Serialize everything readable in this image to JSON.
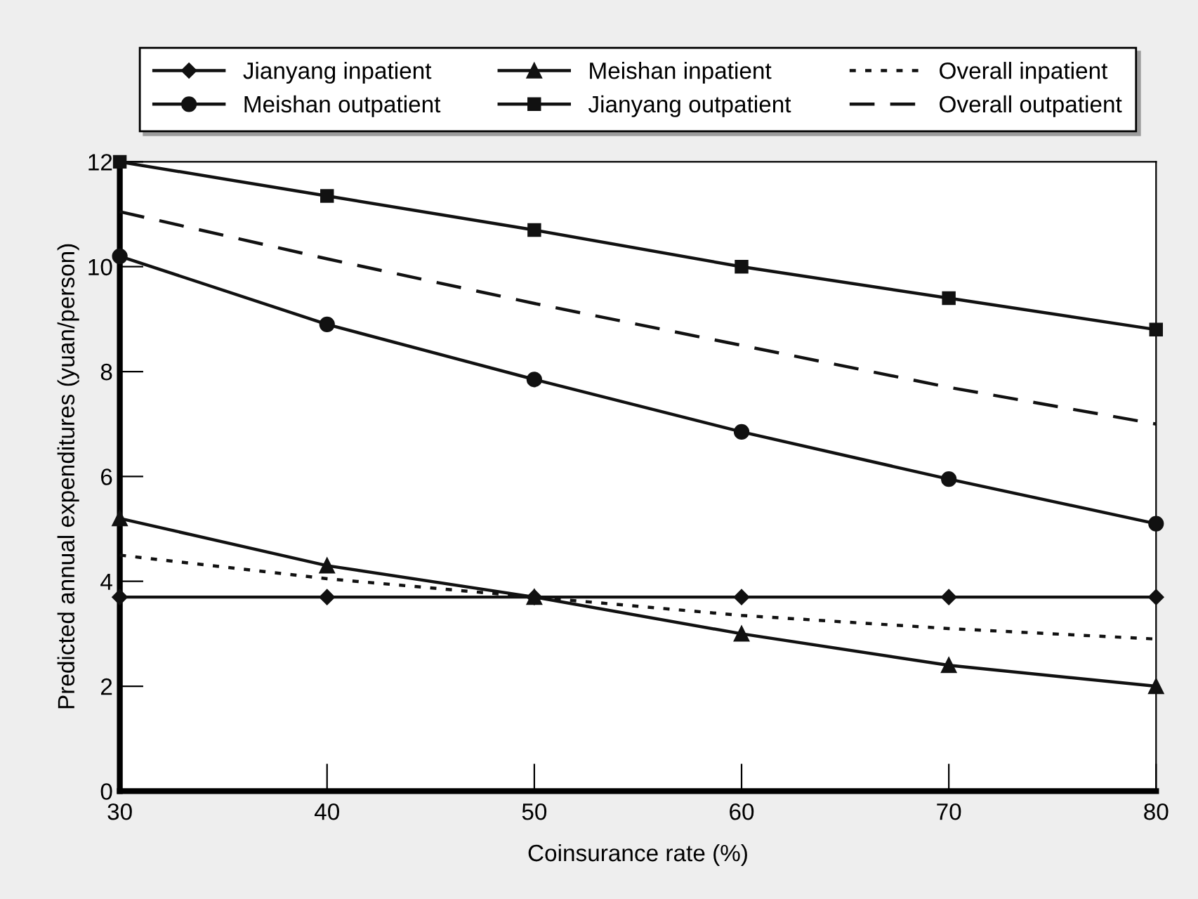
{
  "chart_data": {
    "type": "line",
    "xlabel": "Coinsurance rate (%)",
    "ylabel": "Predicted annual expenditures (yuan/person)",
    "x": [
      30,
      40,
      50,
      60,
      70,
      80
    ],
    "series": [
      {
        "name": "Jianyang inpatient",
        "color": "#111111",
        "marker": "diamond",
        "line_style": "solid",
        "values": [
          3.7,
          3.7,
          3.7,
          3.7,
          3.7,
          3.7
        ]
      },
      {
        "name": "Meishan outpatient",
        "color": "#111111",
        "marker": "circle",
        "line_style": "solid",
        "values": [
          10.2,
          8.9,
          7.85,
          6.85,
          5.95,
          5.1
        ]
      },
      {
        "name": "Meishan inpatient",
        "color": "#111111",
        "marker": "triangle",
        "line_style": "solid",
        "values": [
          5.2,
          4.3,
          3.7,
          3.0,
          2.4,
          2.0
        ]
      },
      {
        "name": "Jianyang outpatient",
        "color": "#111111",
        "marker": "square",
        "line_style": "solid",
        "values": [
          12.0,
          11.35,
          10.7,
          10.0,
          9.4,
          8.8
        ]
      },
      {
        "name": "Overall inpatient",
        "color": "#111111",
        "marker": "none",
        "line_style": "dotted",
        "values": [
          4.5,
          4.05,
          3.7,
          3.35,
          3.1,
          2.9
        ]
      },
      {
        "name": "Overall outpatient",
        "color": "#111111",
        "marker": "none",
        "line_style": "dashed",
        "values": [
          11.05,
          10.15,
          9.3,
          8.5,
          7.7,
          7.0
        ]
      }
    ],
    "xlim": [
      30,
      80
    ],
    "ylim": [
      0,
      12
    ],
    "xticks": [
      30,
      40,
      50,
      60,
      70,
      80
    ],
    "yticks": [
      0,
      2,
      4,
      6,
      8,
      10,
      12
    ],
    "grid": false,
    "legend": "top"
  }
}
